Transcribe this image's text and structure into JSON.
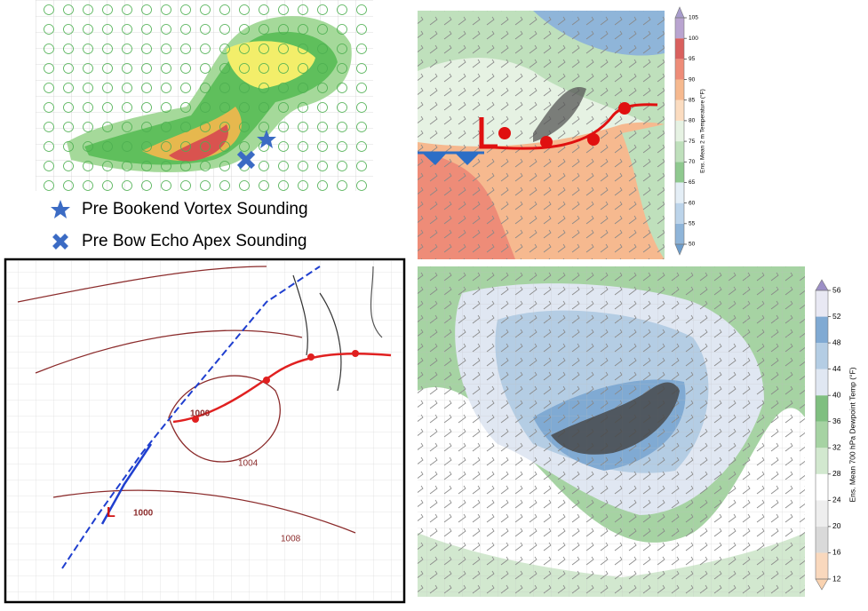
{
  "legend": {
    "items": [
      "Pre Bookend Vortex Sounding",
      "Pre Bow Echo Apex Sounding"
    ]
  },
  "surface_map": {
    "isobar_labels": [
      "1000",
      "1000",
      "1004",
      "1008"
    ]
  },
  "temperature_map": {
    "colorbar": {
      "label": "Ens. Mean 2 m Temperature (°F)",
      "ticks": [
        50,
        55,
        60,
        65,
        70,
        75,
        80,
        85,
        90,
        95,
        100,
        105
      ],
      "colors": [
        "#8fb5d9",
        "#bcd4ea",
        "#e4eef6",
        "#8fc98f",
        "#bfe0bc",
        "#e6f2e3",
        "#fbdcc0",
        "#f6b98f",
        "#ee8c78",
        "#d9605e",
        "#b9a4d0"
      ],
      "under_color": "#6d9dcc",
      "over_color": "#a89ccd"
    }
  },
  "dewpoint_map": {
    "colorbar": {
      "label": "Ens. Mean 700 hPa Dewpoint Temp (°F)",
      "ticks": [
        12,
        16,
        20,
        24,
        28,
        32,
        36,
        40,
        44,
        48,
        52,
        56
      ],
      "colors": [
        "#f9d8bd",
        "#d9d9d9",
        "#eeeeee",
        "#ffffff",
        "#d2e8cf",
        "#a6d3a3",
        "#7fbf80",
        "#e0e7f2",
        "#b4cde4",
        "#80aad3",
        "#e8e8f3"
      ],
      "under_color": "#f9d2b0",
      "over_color": "#9c8fc6"
    }
  }
}
